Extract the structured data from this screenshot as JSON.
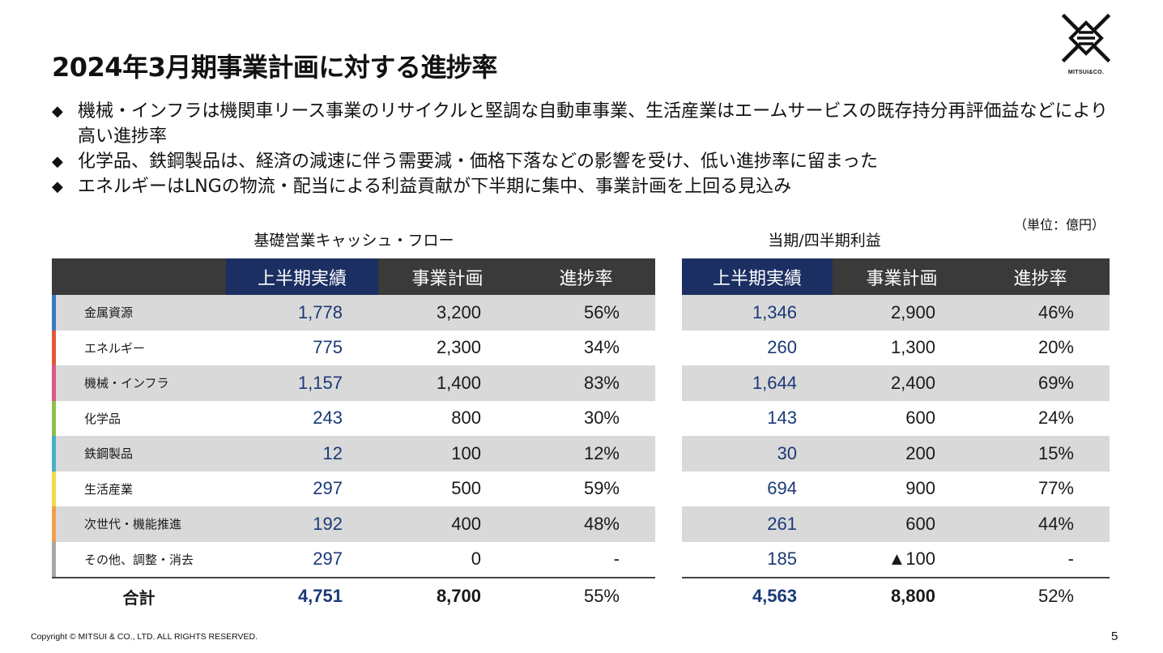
{
  "title": "2024年3月期事業計画に対する進捗率",
  "logo": {
    "text": "MITSUI&CO."
  },
  "bullet_mark": "◆",
  "bullets": [
    "機械・インフラは機関車リース事業のリサイクルと堅調な自動車事業、生活産業はエームサービスの既存持分再評価益などにより高い進捗率",
    "化学品、鉄鋼製品は、経済の減速に伴う需要減・価格下落などの影響を受け、低い進捗率に留まった",
    "エネルギーはLNGの物流・配当による利益貢献が下半期に集中、事業計画を上回る見込み"
  ],
  "unit": "（単位：億円）",
  "left_table": {
    "caption": "基礎営業キャッシュ・フロー",
    "headers": [
      "上半期実績",
      "事業計画",
      "進捗率"
    ],
    "rows": [
      {
        "segment": "金属資源",
        "color": "#3a78c4",
        "actual": "1,778",
        "plan": "3,200",
        "rate": "56%"
      },
      {
        "segment": "エネルギー",
        "color": "#e05a3a",
        "actual": "775",
        "plan": "2,300",
        "rate": "34%"
      },
      {
        "segment": "機械・インフラ",
        "color": "#d85a8a",
        "actual": "1,157",
        "plan": "1,400",
        "rate": "83%"
      },
      {
        "segment": "化学品",
        "color": "#8cc04a",
        "actual": "243",
        "plan": "800",
        "rate": "30%"
      },
      {
        "segment": "鉄鋼製品",
        "color": "#4ab0c8",
        "actual": "12",
        "plan": "100",
        "rate": "12%"
      },
      {
        "segment": "生活産業",
        "color": "#f2d94a",
        "actual": "297",
        "plan": "500",
        "rate": "59%"
      },
      {
        "segment": "次世代・機能推進",
        "color": "#f0a050",
        "actual": "192",
        "plan": "400",
        "rate": "48%"
      },
      {
        "segment": "その他、調整・消去",
        "color": "#a8a8a8",
        "actual": "297",
        "plan": "0",
        "rate": "-"
      }
    ],
    "total": {
      "label": "合計",
      "actual": "4,751",
      "plan": "8,700",
      "rate": "55%"
    }
  },
  "right_table": {
    "caption": "当期/四半期利益",
    "headers": [
      "上半期実績",
      "事業計画",
      "進捗率"
    ],
    "rows": [
      {
        "actual": "1,346",
        "plan": "2,900",
        "rate": "46%"
      },
      {
        "actual": "260",
        "plan": "1,300",
        "rate": "20%"
      },
      {
        "actual": "1,644",
        "plan": "2,400",
        "rate": "69%"
      },
      {
        "actual": "143",
        "plan": "600",
        "rate": "24%"
      },
      {
        "actual": "30",
        "plan": "200",
        "rate": "15%"
      },
      {
        "actual": "694",
        "plan": "900",
        "rate": "77%"
      },
      {
        "actual": "261",
        "plan": "600",
        "rate": "44%"
      },
      {
        "actual": "185",
        "plan": "▲100",
        "rate": "-"
      }
    ],
    "total": {
      "actual": "4,563",
      "plan": "8,800",
      "rate": "52%"
    }
  },
  "footer": "Copyright © MITSUI & CO., LTD. ALL RIGHTS RESERVED.",
  "page_number": "5"
}
